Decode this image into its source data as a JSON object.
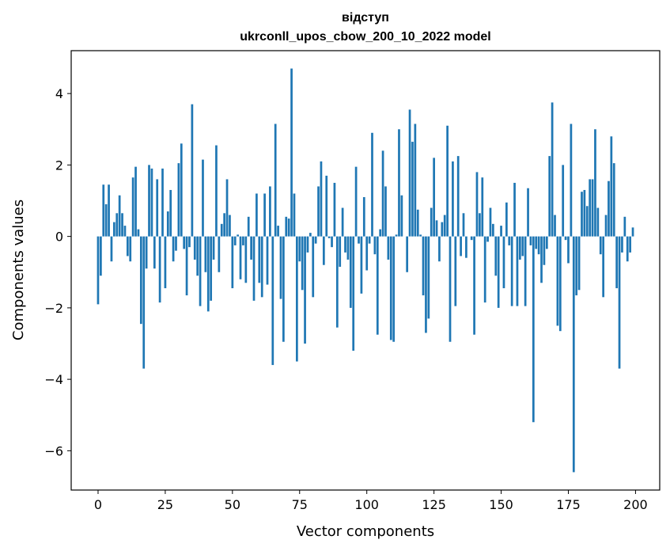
{
  "chart_data": {
    "type": "bar",
    "title": "відступ",
    "subtitle": "ukrconll_upos_cbow_200_10_2022 model",
    "xlabel": "Vector components",
    "ylabel": "Components values",
    "xlim": [
      -10,
      209
    ],
    "ylim": [
      -7.1,
      5.2
    ],
    "xticks": [
      0,
      25,
      50,
      75,
      100,
      125,
      150,
      175,
      200
    ],
    "yticks": [
      -6,
      -4,
      -2,
      0,
      2,
      4
    ],
    "ytick_labels": [
      "−6",
      "−4",
      "−2",
      "0",
      "2",
      "4"
    ],
    "bar_color": "#1f77b4",
    "grid": false,
    "legend": "none",
    "x": [
      0,
      1,
      2,
      3,
      4,
      5,
      6,
      7,
      8,
      9,
      10,
      11,
      12,
      13,
      14,
      15,
      16,
      17,
      18,
      19,
      20,
      21,
      22,
      23,
      24,
      25,
      26,
      27,
      28,
      29,
      30,
      31,
      32,
      33,
      34,
      35,
      36,
      37,
      38,
      39,
      40,
      41,
      42,
      43,
      44,
      45,
      46,
      47,
      48,
      49,
      50,
      51,
      52,
      53,
      54,
      55,
      56,
      57,
      58,
      59,
      60,
      61,
      62,
      63,
      64,
      65,
      66,
      67,
      68,
      69,
      70,
      71,
      72,
      73,
      74,
      75,
      76,
      77,
      78,
      79,
      80,
      81,
      82,
      83,
      84,
      85,
      86,
      87,
      88,
      89,
      90,
      91,
      92,
      93,
      94,
      95,
      96,
      97,
      98,
      99,
      100,
      101,
      102,
      103,
      104,
      105,
      106,
      107,
      108,
      109,
      110,
      111,
      112,
      113,
      114,
      115,
      116,
      117,
      118,
      119,
      120,
      121,
      122,
      123,
      124,
      125,
      126,
      127,
      128,
      129,
      130,
      131,
      132,
      133,
      134,
      135,
      136,
      137,
      138,
      139,
      140,
      141,
      142,
      143,
      144,
      145,
      146,
      147,
      148,
      149,
      150,
      151,
      152,
      153,
      154,
      155,
      156,
      157,
      158,
      159,
      160,
      161,
      162,
      163,
      164,
      165,
      166,
      167,
      168,
      169,
      170,
      171,
      172,
      173,
      174,
      175,
      176,
      177,
      178,
      179,
      180,
      181,
      182,
      183,
      184,
      185,
      186,
      187,
      188,
      189,
      190,
      191,
      192,
      193,
      194,
      195,
      196,
      197,
      198,
      199
    ],
    "values": [
      -1.9,
      -1.1,
      1.45,
      0.9,
      1.45,
      -0.7,
      0.4,
      0.65,
      1.15,
      0.65,
      0.3,
      -0.55,
      -0.7,
      1.65,
      1.95,
      0.2,
      -2.45,
      -3.7,
      -0.9,
      2.0,
      1.9,
      -0.9,
      1.6,
      -1.85,
      1.9,
      -1.45,
      0.7,
      1.3,
      -0.7,
      -0.4,
      2.05,
      2.6,
      -0.35,
      -1.65,
      -0.3,
      3.7,
      -0.65,
      -1.1,
      -1.95,
      2.15,
      -1.0,
      -2.1,
      -1.8,
      -0.65,
      2.55,
      -1.0,
      0.35,
      0.65,
      1.6,
      0.6,
      -1.45,
      -0.25,
      0.05,
      -1.2,
      -0.25,
      -1.3,
      0.55,
      -0.65,
      -1.8,
      1.2,
      -1.3,
      -1.7,
      1.2,
      -1.35,
      1.4,
      -3.6,
      3.15,
      0.3,
      -1.75,
      -2.95,
      0.55,
      0.5,
      4.7,
      1.2,
      -3.5,
      -0.7,
      -1.5,
      -3.0,
      -0.45,
      0.1,
      -1.7,
      -0.2,
      1.4,
      2.1,
      -0.8,
      1.7,
      -0.05,
      -0.3,
      1.5,
      -2.55,
      -0.85,
      0.8,
      -0.45,
      -0.65,
      -2.0,
      -3.2,
      1.95,
      -0.2,
      -1.6,
      1.1,
      -0.95,
      -0.2,
      2.9,
      -0.5,
      -2.75,
      0.2,
      2.4,
      1.4,
      -0.65,
      -2.9,
      -2.95,
      0.05,
      3.0,
      1.15,
      0.0,
      -1.0,
      3.55,
      2.65,
      3.15,
      0.75,
      0.05,
      -1.65,
      -2.7,
      -2.3,
      0.8,
      2.2,
      0.45,
      -0.7,
      0.4,
      0.6,
      3.1,
      -2.95,
      2.1,
      -1.95,
      2.25,
      -0.55,
      0.65,
      -0.6,
      0.0,
      -0.1,
      -2.75,
      1.8,
      0.65,
      1.65,
      -1.85,
      -0.15,
      0.8,
      0.35,
      -1.1,
      -2.0,
      0.3,
      -1.45,
      0.95,
      -0.25,
      -1.95,
      1.5,
      -1.95,
      -0.65,
      -0.55,
      -1.95,
      1.35,
      -0.25,
      -5.2,
      -0.35,
      -0.5,
      -1.3,
      -0.8,
      -0.35,
      2.25,
      3.75,
      0.6,
      -2.5,
      -2.65,
      2.0,
      -0.1,
      -0.75,
      3.15,
      -6.6,
      -1.65,
      -1.5,
      1.25,
      1.3,
      0.85,
      1.6,
      1.6,
      3.0,
      0.8,
      -0.5,
      -1.7,
      0.6,
      1.55,
      2.8,
      2.05,
      -1.45,
      -3.7,
      -0.45,
      0.55,
      -0.7,
      -0.45,
      0.25
    ]
  }
}
